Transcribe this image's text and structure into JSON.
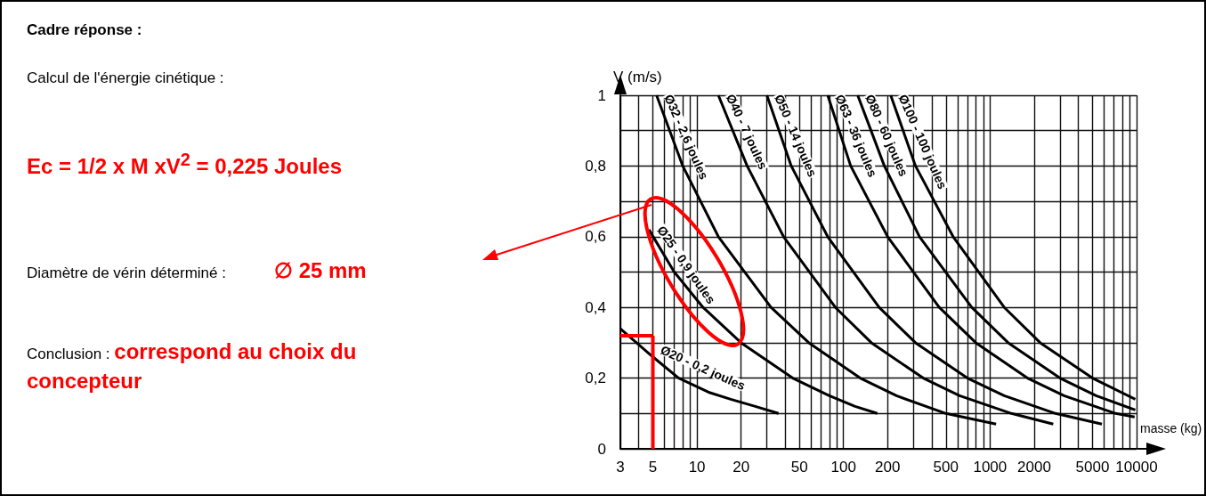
{
  "chart_data": [
    {
      "type": "other",
      "title": "Cadre réponse :",
      "annotations": [
        "Calcul de l'énergie cinétique :",
        "Ec = 1/2 x M xV$^{2}$ = 0,225 Joules",
        "Diamètre de vérin déterminé :",
        "∅ 25 mm",
        "Conclusion :",
        "correspond au choix du concepteur"
      ]
    },
    {
      "type": "line",
      "xlabel": "masse (kg)",
      "ylabel": "V (m/s)",
      "log": "x",
      "grid": true,
      "marker": "none",
      "xlim": [
        3,
        10000
      ],
      "ylim": [
        0,
        1
      ],
      "xticks": [
        3,
        {
          "value": 4,
          "label": null
        },
        5,
        {
          "value": 6,
          "label": null
        },
        {
          "value": 7,
          "label": null
        },
        {
          "value": 8,
          "label": null
        },
        {
          "value": 9,
          "label": null
        },
        10,
        20,
        {
          "value": 30,
          "label": null
        },
        {
          "value": 40,
          "label": null
        },
        50,
        {
          "value": 60,
          "label": null
        },
        {
          "value": 70,
          "label": null
        },
        {
          "value": 80,
          "label": null
        },
        {
          "value": 90,
          "label": null
        },
        100,
        200,
        {
          "value": 300,
          "label": null
        },
        {
          "value": 400,
          "label": null
        },
        500,
        {
          "value": 600,
          "label": null
        },
        {
          "value": 700,
          "label": null
        },
        {
          "value": 800,
          "label": null
        },
        {
          "value": 900,
          "label": null
        },
        1000,
        2000,
        {
          "value": 3000,
          "label": null
        },
        {
          "value": 4000,
          "label": null
        },
        5000,
        {
          "value": 6000,
          "label": null
        },
        {
          "value": 7000,
          "label": null
        },
        {
          "value": 8000,
          "label": null
        },
        {
          "value": 9000,
          "label": null
        },
        10000
      ],
      "yticks": [
        0,
        {
          "value": 0.1,
          "label": null
        },
        {
          "value": 0.2,
          "label": "0,2"
        },
        {
          "value": 0.3,
          "label": null
        },
        {
          "value": 0.4,
          "label": "0,4"
        },
        {
          "value": 0.5,
          "label": null
        },
        {
          "value": 0.6,
          "label": "0,6"
        },
        {
          "value": 0.7,
          "label": null
        },
        {
          "value": 0.8,
          "label": "0,8"
        },
        {
          "value": 0.9,
          "label": null
        },
        1
      ],
      "series": [
        {
          "name": "Ø20 - 0,2 joules",
          "color": "#000000",
          "x": [
            3,
            5,
            7.5,
            12,
            17,
            25,
            36
          ],
          "values": [
            0.34,
            0.26,
            0.2,
            0.16,
            0.14,
            0.12,
            0.1
          ]
        },
        {
          "name": "Ø25 - 0,9 joules",
          "color": "#000000",
          "x": [
            4.7,
            7,
            11,
            20,
            45,
            80,
            120,
            170
          ],
          "values": [
            0.62,
            0.5,
            0.4,
            0.3,
            0.2,
            0.15,
            0.12,
            0.1
          ]
        },
        {
          "name": "Ø32 - 2,6 joules",
          "color": "#000000",
          "x": [
            5.3,
            8,
            14,
            32,
            58,
            130,
            230,
            500,
            1100
          ],
          "values": [
            1,
            0.8,
            0.6,
            0.4,
            0.3,
            0.2,
            0.15,
            0.1,
            0.07
          ]
        },
        {
          "name": "Ø40 - 7 joules",
          "color": "#000000",
          "x": [
            14,
            22,
            39,
            88,
            155,
            350,
            620,
            1400,
            2700
          ],
          "values": [
            1,
            0.8,
            0.6,
            0.4,
            0.3,
            0.2,
            0.15,
            0.1,
            0.07
          ]
        },
        {
          "name": "Ø50 - 14 joules",
          "color": "#000000",
          "x": [
            30,
            44,
            78,
            175,
            310,
            700,
            1250,
            2800,
            5800
          ],
          "values": [
            1,
            0.8,
            0.6,
            0.4,
            0.3,
            0.2,
            0.15,
            0.1,
            0.07
          ]
        },
        {
          "name": "Ø63 - 36 joules",
          "color": "#000000",
          "x": [
            78,
            112,
            200,
            450,
            800,
            1800,
            3200,
            7200,
            9700
          ],
          "values": [
            1,
            0.8,
            0.6,
            0.4,
            0.3,
            0.2,
            0.15,
            0.1,
            0.09
          ]
        },
        {
          "name": "Ø80 - 60 joules",
          "color": "#000000",
          "x": [
            125,
            190,
            330,
            750,
            1330,
            3000,
            5300,
            9800
          ],
          "values": [
            1,
            0.8,
            0.6,
            0.4,
            0.3,
            0.2,
            0.15,
            0.11
          ]
        },
        {
          "name": "Ø100 - 100 joules",
          "color": "#000000",
          "x": [
            210,
            310,
            560,
            1250,
            2200,
            5000,
            9800
          ],
          "values": [
            1,
            0.8,
            0.6,
            0.4,
            0.3,
            0.2,
            0.14
          ]
        },
        {
          "color": "#ff0000",
          "x": [
            3,
            5
          ],
          "values": [
            0.32,
            0.32
          ]
        },
        {
          "color": "#ff0000",
          "x": [
            5,
            5
          ],
          "values": [
            0,
            0.32
          ]
        }
      ]
    }
  ]
}
